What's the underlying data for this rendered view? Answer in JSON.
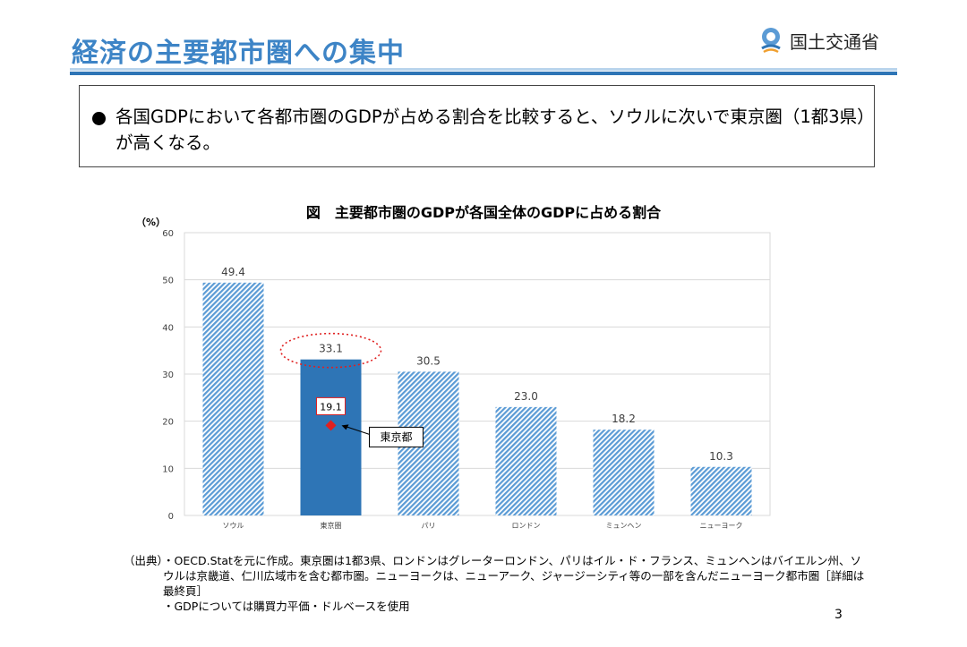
{
  "slide": {
    "title": "経済の主要都市圏への集中",
    "logo_text": "国土交通省",
    "summary": "各国GDPにおいて各都市圏のGDPが占める割合を比較すると、ソウルに次いで東京圏（1都3県）が高くなる。",
    "source_label": "（出典）",
    "source_lines": [
      "・OECD.Statを元に作成。東京圏は1都3県、ロンドンはグレーターロンドン、パリはイル・ド・フランス、ミュンヘンはバイエルン州、ソウルは京畿道、仁川広域市を含む都市圏。ニューヨークは、ニューアーク、ジャージーシティ等の一部を含んだニューヨーク都市圏［詳細は最終頁］",
      "・GDPについては購買力平価・ドルベースを使用"
    ],
    "page_number": "3"
  },
  "chart_data": {
    "type": "bar",
    "title": "図　主要都市圏のGDPが各国全体のGDPに占める割合",
    "ylabel": "（%）",
    "ylim": [
      0,
      60
    ],
    "yticks": [
      0,
      10,
      20,
      30,
      40,
      50,
      60
    ],
    "categories": [
      "ソウル",
      "東京圏",
      "パリ",
      "ロンドン",
      "ミュンヘン",
      "ニューヨーク"
    ],
    "values": [
      49.4,
      33.1,
      30.5,
      23.0,
      18.2,
      10.3
    ],
    "value_labels": [
      "49.4",
      "33.1",
      "30.5",
      "23.0",
      "18.2",
      "10.3"
    ],
    "highlight_index": 1,
    "highlight_color": "#2e75b6",
    "bar_color": "#9dc3e6",
    "grid": true,
    "annotation": {
      "category": "東京圏",
      "value": 19.1,
      "value_label": "19.1",
      "label": "東京都",
      "marker_color": "#e02020"
    }
  }
}
